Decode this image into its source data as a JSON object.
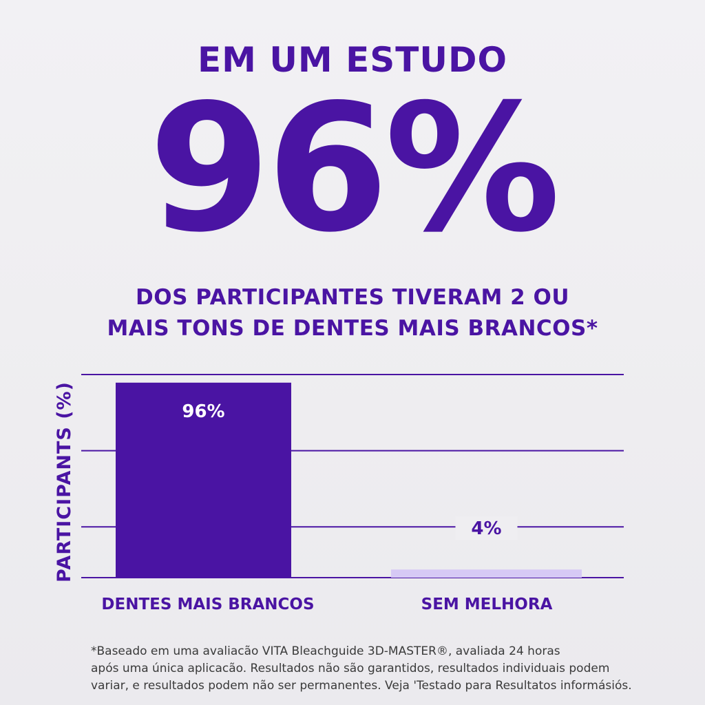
{
  "header": {
    "title": "EM UM ESTUDO",
    "big_stat": "96%",
    "subtitle_line1": "DOS PARTICIPANTES TIVERAM  2 OU",
    "subtitle_line2": "MAIS TONS DE DENTES MAIS BRANCOS*"
  },
  "chart_data": {
    "type": "bar",
    "categories": [
      "DENTES MAIS BRANCOS",
      "SEM MELHORA"
    ],
    "values": [
      96,
      4
    ],
    "data_labels": [
      "96%",
      "4%"
    ],
    "ylabel": "PARTICIPANTS (%)",
    "ylim": [
      0,
      100
    ],
    "grid": true,
    "colors": [
      "#4a14a3",
      "#d6c9f5"
    ]
  },
  "footnote": {
    "line1": "*Baseado em uma avaliacão VITA Bleachguide 3D-MASTER®, avaliada 24 horas",
    "line2": "após uma única aplicacão. Resultados não são garantidos, resultados individuais podem",
    "line3": "variar, e resultados podem não ser permanentes. Veja 'Testado para Resultatos informásiós."
  },
  "colors": {
    "primary": "#4a14a3",
    "bar_light": "#d6c9f5",
    "background": "#f0eff2"
  }
}
